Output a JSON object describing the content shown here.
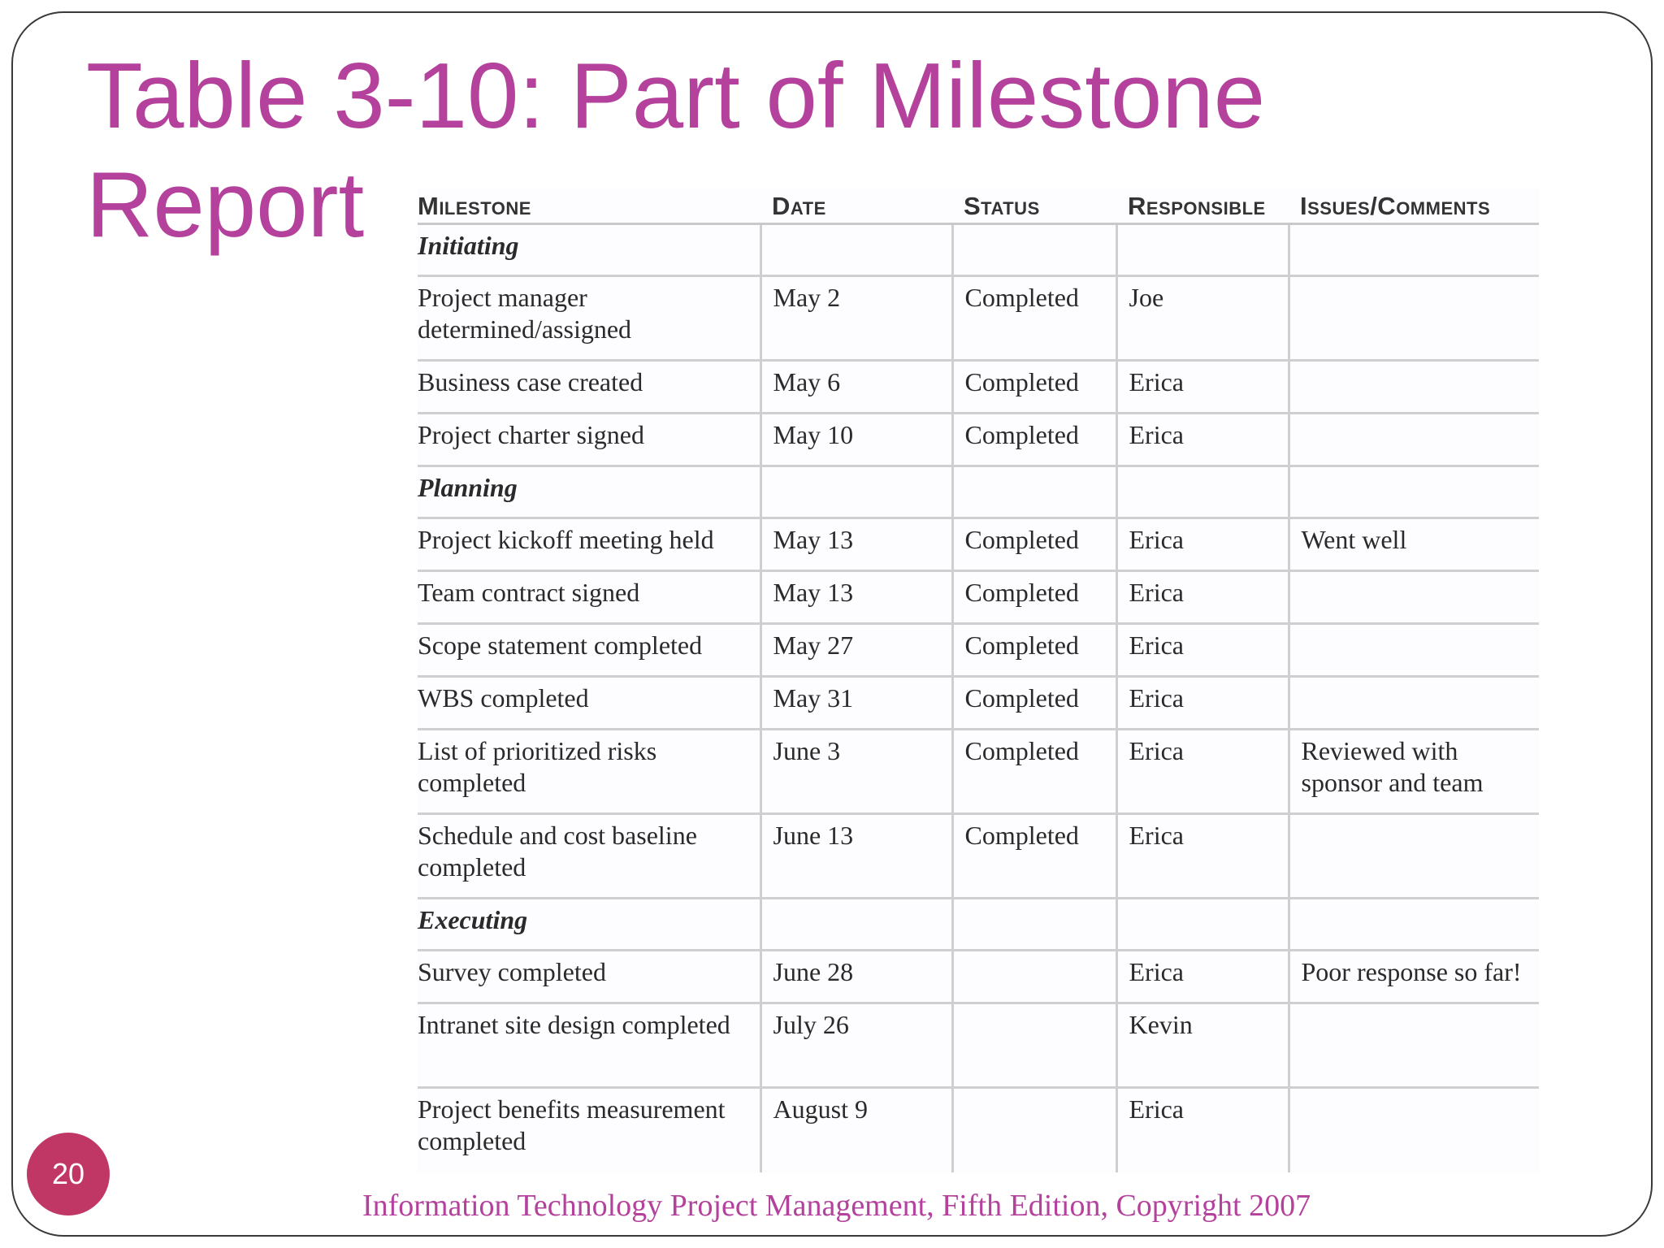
{
  "title": "Table 3-10: Part of Milestone Report",
  "table": {
    "headers": [
      "Milestone",
      "Date",
      "Status",
      "Responsible",
      "Issues/Comments"
    ],
    "rows": [
      {
        "type": "phase",
        "cells": [
          "Initiating",
          "",
          "",
          "",
          ""
        ]
      },
      {
        "type": "item",
        "cells": [
          "Project manager determined/assigned",
          "May 2",
          "Completed",
          "Joe",
          ""
        ]
      },
      {
        "type": "item",
        "cells": [
          "Business case created",
          "May 6",
          "Completed",
          "Erica",
          ""
        ]
      },
      {
        "type": "item",
        "cells": [
          "Project charter signed",
          "May 10",
          "Completed",
          "Erica",
          ""
        ]
      },
      {
        "type": "phase",
        "cells": [
          "Planning",
          "",
          "",
          "",
          ""
        ]
      },
      {
        "type": "item",
        "cells": [
          "Project kickoff meeting held",
          "May 13",
          "Completed",
          "Erica",
          "Went well"
        ]
      },
      {
        "type": "item",
        "cells": [
          "Team contract signed",
          "May 13",
          "Completed",
          "Erica",
          ""
        ]
      },
      {
        "type": "item",
        "cells": [
          "Scope statement completed",
          "May 27",
          "Completed",
          "Erica",
          ""
        ]
      },
      {
        "type": "item",
        "cells": [
          "WBS completed",
          "May 31",
          "Completed",
          "Erica",
          ""
        ]
      },
      {
        "type": "item",
        "cells": [
          "List of prioritized risks completed",
          "June 3",
          "Completed",
          "Erica",
          "Reviewed with sponsor and team"
        ]
      },
      {
        "type": "item",
        "cells": [
          "Schedule and cost baseline completed",
          "June 13",
          "Completed",
          "Erica",
          ""
        ]
      },
      {
        "type": "phase",
        "cells": [
          "Executing",
          "",
          "",
          "",
          ""
        ]
      },
      {
        "type": "item",
        "cells": [
          "Survey completed",
          "June 28",
          "",
          "Erica",
          "Poor response so far!"
        ]
      },
      {
        "type": "item",
        "cells": [
          "Intranet site design completed",
          "July 26",
          "",
          "Kevin",
          ""
        ]
      },
      {
        "type": "item",
        "cells": [
          "Project benefits measurement completed",
          "August 9",
          "",
          "Erica",
          ""
        ]
      }
    ]
  },
  "page_number": "20",
  "footer": "Information Technology Project Management, Fifth Edition, Copyright 2007",
  "colors": {
    "title": "#b4419c",
    "page_badge": "#c03766",
    "rule": "#cfcfcf"
  }
}
